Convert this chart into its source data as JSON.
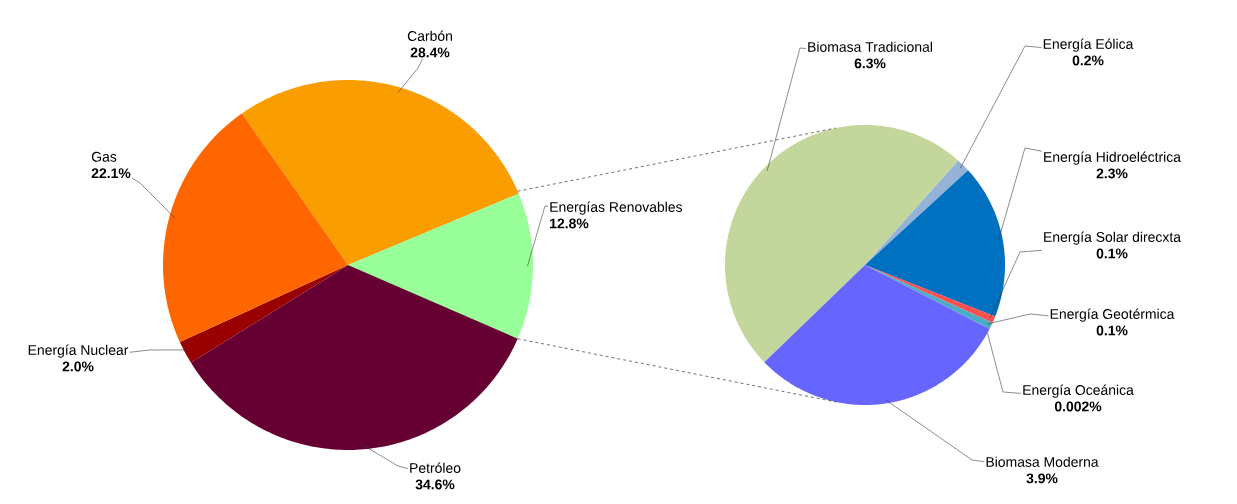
{
  "chart_data": [
    {
      "type": "pie",
      "categories": [
        "Carbón",
        "Energías Renovables",
        "Petróleo",
        "Energía Nuclear",
        "Gas"
      ],
      "values": [
        28.4,
        12.8,
        34.6,
        2.0,
        22.1
      ],
      "colors": [
        "#f99d00",
        "#99ff99",
        "#660033",
        "#990000",
        "#ff6600"
      ],
      "value_labels": [
        "28.4%",
        "12.8%",
        "34.6%",
        "2.0%",
        "22.1%"
      ]
    },
    {
      "type": "pie",
      "categories": [
        "Biomasa Tradicional",
        "Energía Eólica",
        "Energía Hidroeléctrica",
        "Energía Solar direcxta",
        "Energía Geotérmica",
        "Energía Oceánica",
        "Biomasa Moderna"
      ],
      "values": [
        6.3,
        0.2,
        2.3,
        0.1,
        0.1,
        0.002,
        3.9
      ],
      "colors": [
        "#c3d69b",
        "#95b3d7",
        "#0070c0",
        "#ff5050",
        "#4bacc6",
        "#31859c",
        "#6666ff"
      ],
      "value_labels": [
        "6.3%",
        "0.2%",
        "2.3%",
        "0.1%",
        "0.1%",
        "0.002%",
        "3.9%"
      ]
    }
  ]
}
